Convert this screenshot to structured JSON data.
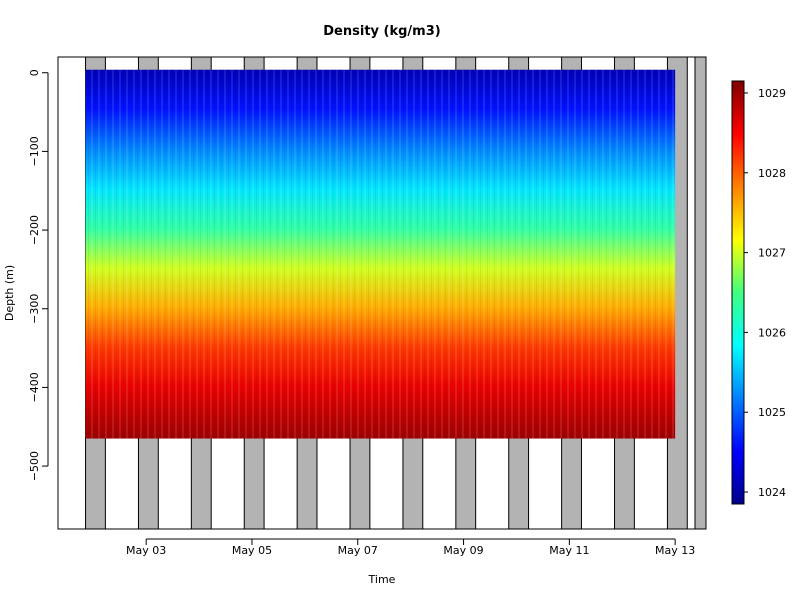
{
  "chart_data": {
    "type": "heatmap",
    "title": "Density (kg/m3)",
    "xlabel": "Time",
    "ylabel": "Depth (m)",
    "x_axis": {
      "type": "date",
      "range": [
        "2011-05-01T08:00",
        "2011-05-13T14:00"
      ],
      "ticks": [
        {
          "date": "2011-05-03",
          "label": "May 03"
        },
        {
          "date": "2011-05-05",
          "label": "May 05"
        },
        {
          "date": "2011-05-07",
          "label": "May 07"
        },
        {
          "date": "2011-05-09",
          "label": "May 09"
        },
        {
          "date": "2011-05-11",
          "label": "May 11"
        },
        {
          "date": "2011-05-13",
          "label": "May 13"
        }
      ]
    },
    "y_axis": {
      "range": [
        -580,
        20
      ],
      "ticks": [
        {
          "value": 0,
          "label": "0"
        },
        {
          "value": -100,
          "label": "−100"
        },
        {
          "value": -200,
          "label": "−200"
        },
        {
          "value": -300,
          "label": "−300"
        },
        {
          "value": -400,
          "label": "−400"
        },
        {
          "value": -500,
          "label": "−500"
        }
      ]
    },
    "colorbar": {
      "range": [
        1023.85,
        1029.15
      ],
      "ticks": [
        {
          "value": 1024,
          "label": "1024"
        },
        {
          "value": 1025,
          "label": "1025"
        },
        {
          "value": 1026,
          "label": "1026"
        },
        {
          "value": 1027,
          "label": "1027"
        },
        {
          "value": 1028,
          "label": "1028"
        },
        {
          "value": 1029,
          "label": "1029"
        }
      ],
      "colormap": [
        "#00008b",
        "#0000ff",
        "#0080ff",
        "#00ffff",
        "#40ff80",
        "#ffff00",
        "#ff8000",
        "#ff0000",
        "#800000"
      ]
    },
    "night_shading": {
      "color": "#b3b3b3",
      "intervals": [
        [
          "2011-05-01T20:30",
          "2011-05-02T05:30"
        ],
        [
          "2011-05-02T20:30",
          "2011-05-03T05:30"
        ],
        [
          "2011-05-03T20:30",
          "2011-05-04T05:30"
        ],
        [
          "2011-05-04T20:30",
          "2011-05-05T05:30"
        ],
        [
          "2011-05-05T20:30",
          "2011-05-06T05:30"
        ],
        [
          "2011-05-06T20:30",
          "2011-05-07T05:30"
        ],
        [
          "2011-05-07T20:30",
          "2011-05-08T05:30"
        ],
        [
          "2011-05-08T20:30",
          "2011-05-09T05:30"
        ],
        [
          "2011-05-09T20:30",
          "2011-05-10T05:30"
        ],
        [
          "2011-05-10T20:30",
          "2011-05-11T05:30"
        ],
        [
          "2011-05-11T20:30",
          "2011-05-12T05:30"
        ],
        [
          "2011-05-12T20:30",
          "2011-05-13T05:30"
        ],
        [
          "2011-05-13T09:00",
          "2011-05-13T14:00"
        ]
      ]
    },
    "data_extent": {
      "time": [
        "2011-05-01T20:30",
        "2011-05-13T00:00"
      ],
      "surface_depth": 0,
      "bottom_depth": -465
    },
    "density_profile": [
      {
        "depth": 0,
        "density": 1024.1
      },
      {
        "depth": -50,
        "density": 1024.6
      },
      {
        "depth": -100,
        "density": 1025.2
      },
      {
        "depth": -150,
        "density": 1025.7
      },
      {
        "depth": -200,
        "density": 1026.3
      },
      {
        "depth": -250,
        "density": 1027.0
      },
      {
        "depth": -300,
        "density": 1027.6
      },
      {
        "depth": -350,
        "density": 1028.2
      },
      {
        "depth": -400,
        "density": 1028.6
      },
      {
        "depth": -465,
        "density": 1029.0
      }
    ]
  }
}
